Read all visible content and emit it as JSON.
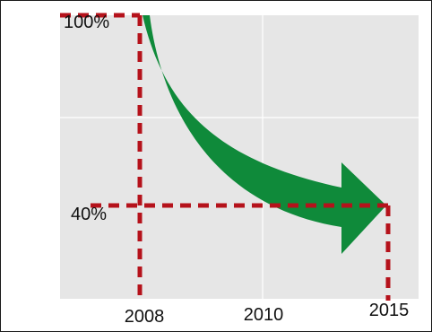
{
  "chart_data": {
    "type": "area",
    "title": "",
    "xlabel": "",
    "ylabel": "",
    "x_tick_labels": [
      "2008",
      "2010",
      "2015"
    ],
    "y_tick_labels": [
      "100%",
      "40%"
    ],
    "series": [
      {
        "x": [
          2008,
          2010,
          2015
        ],
        "y": [
          100,
          55,
          40
        ]
      }
    ],
    "reference_lines": [
      {
        "x": 2008,
        "y": 100
      },
      {
        "x": 2015,
        "y": 40
      }
    ],
    "grid": true,
    "colors": {
      "plot_background": "#e6e6e6",
      "grid": "#ffffff",
      "arrow": "#0f8a3a",
      "reference_line": "#b5121b",
      "text": "#111111"
    }
  }
}
